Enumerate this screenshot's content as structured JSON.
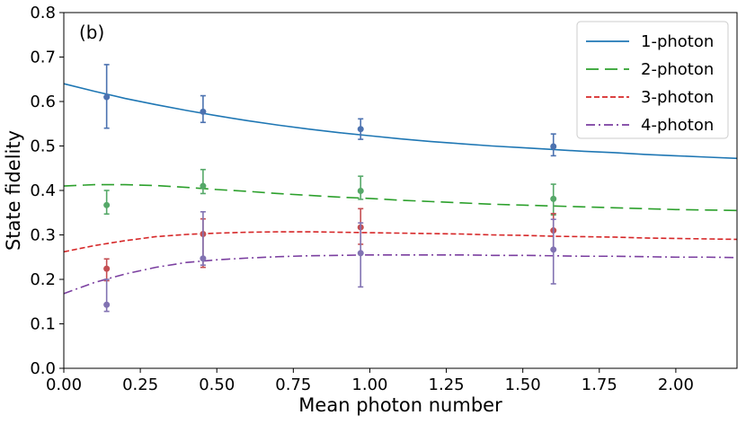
{
  "chart_data": {
    "type": "line",
    "panel_label": "(b)",
    "xlabel": "Mean photon number",
    "ylabel": "State fidelity",
    "xlim": [
      0,
      2.2
    ],
    "ylim": [
      0,
      0.8
    ],
    "xticks": [
      "0.00",
      "0.25",
      "0.50",
      "0.75",
      "1.00",
      "1.25",
      "1.50",
      "1.75",
      "2.00"
    ],
    "xtick_values": [
      0,
      0.25,
      0.5,
      0.75,
      1.0,
      1.25,
      1.5,
      1.75,
      2.0
    ],
    "yticks": [
      "0.0",
      "0.1",
      "0.2",
      "0.3",
      "0.4",
      "0.5",
      "0.6",
      "0.7",
      "0.8"
    ],
    "ytick_values": [
      0,
      0.1,
      0.2,
      0.3,
      0.4,
      0.5,
      0.6,
      0.7,
      0.8
    ],
    "grid": false,
    "legend_position": "top-right",
    "series": [
      {
        "name": "1-photon",
        "line_color": "#1f77b4",
        "marker_color": "#4c72b0",
        "dash": "solid",
        "curve_x": [
          0,
          0.1,
          0.2,
          0.3,
          0.4,
          0.5,
          0.6,
          0.7,
          0.8,
          0.9,
          1.0,
          1.1,
          1.2,
          1.3,
          1.4,
          1.5,
          1.6,
          1.7,
          1.8,
          1.9,
          2.0,
          2.1,
          2.2
        ],
        "curve_y": [
          0.64,
          0.623,
          0.607,
          0.593,
          0.58,
          0.568,
          0.557,
          0.547,
          0.538,
          0.53,
          0.523,
          0.516,
          0.51,
          0.505,
          0.5,
          0.496,
          0.492,
          0.488,
          0.485,
          0.481,
          0.478,
          0.475,
          0.472
        ],
        "points": [
          {
            "x": 0.14,
            "y": 0.61,
            "lo": 0.54,
            "hi": 0.683
          },
          {
            "x": 0.455,
            "y": 0.577,
            "lo": 0.553,
            "hi": 0.613
          },
          {
            "x": 0.97,
            "y": 0.538,
            "lo": 0.515,
            "hi": 0.561
          },
          {
            "x": 1.6,
            "y": 0.499,
            "lo": 0.478,
            "hi": 0.527
          }
        ]
      },
      {
        "name": "2-photon",
        "line_color": "#2ca02c",
        "marker_color": "#55a868",
        "dash": "long-dash",
        "curve_x": [
          0,
          0.1,
          0.2,
          0.3,
          0.4,
          0.5,
          0.6,
          0.7,
          0.8,
          0.9,
          1.0,
          1.1,
          1.2,
          1.3,
          1.4,
          1.5,
          1.6,
          1.7,
          1.8,
          1.9,
          2.0,
          2.1,
          2.2
        ],
        "curve_y": [
          0.41,
          0.413,
          0.413,
          0.411,
          0.407,
          0.402,
          0.398,
          0.393,
          0.389,
          0.385,
          0.382,
          0.378,
          0.375,
          0.372,
          0.369,
          0.367,
          0.365,
          0.363,
          0.361,
          0.359,
          0.357,
          0.356,
          0.355
        ],
        "points": [
          {
            "x": 0.14,
            "y": 0.367,
            "lo": 0.347,
            "hi": 0.4
          },
          {
            "x": 0.455,
            "y": 0.41,
            "lo": 0.393,
            "hi": 0.447
          },
          {
            "x": 0.97,
            "y": 0.399,
            "lo": 0.38,
            "hi": 0.432
          },
          {
            "x": 1.6,
            "y": 0.381,
            "lo": 0.345,
            "hi": 0.414
          }
        ]
      },
      {
        "name": "3-photon",
        "line_color": "#d62728",
        "marker_color": "#c44e52",
        "dash": "dash",
        "curve_x": [
          0,
          0.1,
          0.2,
          0.3,
          0.4,
          0.5,
          0.6,
          0.7,
          0.8,
          0.9,
          1.0,
          1.1,
          1.2,
          1.3,
          1.4,
          1.5,
          1.6,
          1.7,
          1.8,
          1.9,
          2.0,
          2.1,
          2.2
        ],
        "curve_y": [
          0.262,
          0.276,
          0.287,
          0.296,
          0.301,
          0.304,
          0.306,
          0.307,
          0.307,
          0.306,
          0.305,
          0.304,
          0.303,
          0.302,
          0.3,
          0.299,
          0.297,
          0.296,
          0.295,
          0.293,
          0.292,
          0.291,
          0.29
        ],
        "points": [
          {
            "x": 0.14,
            "y": 0.224,
            "lo": 0.197,
            "hi": 0.246
          },
          {
            "x": 0.455,
            "y": 0.302,
            "lo": 0.227,
            "hi": 0.336
          },
          {
            "x": 0.97,
            "y": 0.317,
            "lo": 0.279,
            "hi": 0.359
          },
          {
            "x": 1.6,
            "y": 0.31,
            "lo": 0.268,
            "hi": 0.348
          }
        ]
      },
      {
        "name": "4-photon",
        "line_color": "#7b3fa0",
        "marker_color": "#8172b2",
        "dash": "dash-dot",
        "curve_x": [
          0,
          0.1,
          0.2,
          0.3,
          0.4,
          0.5,
          0.6,
          0.7,
          0.8,
          0.9,
          1.0,
          1.1,
          1.2,
          1.3,
          1.4,
          1.5,
          1.6,
          1.7,
          1.8,
          1.9,
          2.0,
          2.1,
          2.2
        ],
        "curve_y": [
          0.168,
          0.193,
          0.212,
          0.227,
          0.238,
          0.244,
          0.248,
          0.251,
          0.253,
          0.254,
          0.255,
          0.255,
          0.255,
          0.255,
          0.254,
          0.254,
          0.253,
          0.252,
          0.252,
          0.251,
          0.25,
          0.25,
          0.249
        ],
        "points": [
          {
            "x": 0.14,
            "y": 0.143,
            "lo": 0.128,
            "hi": 0.2
          },
          {
            "x": 0.455,
            "y": 0.247,
            "lo": 0.232,
            "hi": 0.352
          },
          {
            "x": 0.97,
            "y": 0.259,
            "lo": 0.183,
            "hi": 0.327
          },
          {
            "x": 1.6,
            "y": 0.267,
            "lo": 0.19,
            "hi": 0.335
          }
        ]
      }
    ]
  }
}
